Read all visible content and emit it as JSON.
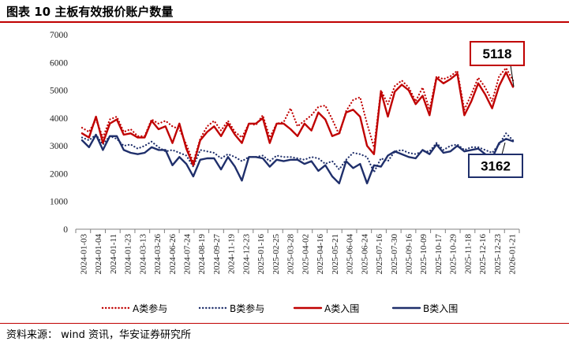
{
  "header": {
    "title": "图表 10 主板有效报价账户数量"
  },
  "footer": {
    "source": "资料来源： wind 资讯，华安证券研究所"
  },
  "colors": {
    "a_series": "#c00000",
    "b_series": "#1f2f6b",
    "accent_rule": "#c00000"
  },
  "chart_data": {
    "type": "line",
    "title": "",
    "xlabel": "",
    "ylabel": "",
    "ylim": [
      0,
      7000
    ],
    "yticks": [
      0,
      1000,
      2000,
      3000,
      4000,
      5000,
      6000,
      7000
    ],
    "grid": false,
    "legend_position": "bottom",
    "x_tick_labels": [
      "2024-01-03",
      "2024-01-04",
      "2024-01-11",
      "2024-01-23",
      "2024-03-13",
      "2024-03-26",
      "2024-06-26",
      "2024-07-24",
      "2024-08-19",
      "2024-09-27",
      "2024-11-19",
      "2024-12-23",
      "2025-01-16",
      "2025-02-25",
      "2025-03-28",
      "2025-04-02",
      "2025-04-16",
      "2025-05-21",
      "2025-06-04",
      "2025-06-24",
      "2025-07-16",
      "2025-07-30",
      "2025-09-16",
      "2025-10-09",
      "2025-10-17",
      "2025-10-29",
      "2025-11-18",
      "2025-12-16",
      "2025-12-23",
      "2026-01-21"
    ],
    "series": [
      {
        "name": "A类参与",
        "style": "dotted",
        "color": "#c00000",
        "values": [
          3650,
          3500,
          3950,
          3300,
          3950,
          4050,
          3500,
          3600,
          3350,
          3350,
          3950,
          3800,
          3900,
          3700,
          3600,
          3050,
          2400,
          3250,
          3700,
          3900,
          3550,
          3900,
          3500,
          3300,
          3800,
          3750,
          4100,
          3300,
          3800,
          3850,
          4350,
          3700,
          3900,
          4100,
          4400,
          4450,
          3950,
          3400,
          4250,
          4650,
          4750,
          3800,
          2950,
          5000,
          4500,
          5150,
          5350,
          5100,
          4600,
          5100,
          4300,
          5500,
          5400,
          5500,
          5700,
          4300,
          4850,
          5450,
          5100,
          4600,
          5500,
          5800,
          5350
        ]
      },
      {
        "name": "B类参与",
        "style": "dotted",
        "color": "#1f2f6b",
        "values": [
          3300,
          3200,
          3400,
          3050,
          3350,
          3250,
          3000,
          3050,
          2900,
          3000,
          3150,
          2950,
          2800,
          2850,
          2750,
          2650,
          2250,
          2850,
          2800,
          2750,
          2550,
          2700,
          2600,
          2450,
          2600,
          2600,
          2650,
          2450,
          2650,
          2600,
          2600,
          2550,
          2500,
          2600,
          2550,
          2350,
          2450,
          2150,
          2500,
          2750,
          2700,
          2600,
          2050,
          2550,
          2450,
          2800,
          2850,
          2750,
          2700,
          2800,
          2800,
          3100,
          2850,
          3000,
          3050,
          2850,
          2950,
          2950,
          2850,
          2750,
          3050,
          3450,
          3200
        ]
      },
      {
        "name": "A类入围",
        "style": "solid",
        "color": "#c00000",
        "values": [
          3450,
          3300,
          4050,
          3100,
          3800,
          3950,
          3400,
          3450,
          3300,
          3300,
          3900,
          3600,
          3700,
          3100,
          3800,
          2900,
          2300,
          3200,
          3500,
          3700,
          3350,
          3800,
          3400,
          3100,
          3800,
          3800,
          4000,
          3100,
          3800,
          3800,
          3600,
          3350,
          3800,
          3550,
          4200,
          3950,
          3350,
          3450,
          4200,
          4300,
          4050,
          3000,
          2700,
          4950,
          4050,
          4950,
          5200,
          5000,
          4500,
          4800,
          4100,
          5450,
          5250,
          5400,
          5600,
          4100,
          4600,
          5250,
          4850,
          4350,
          5150,
          5650,
          5118
        ]
      },
      {
        "name": "B类入围",
        "style": "solid",
        "color": "#1f2f6b",
        "values": [
          3200,
          2950,
          3400,
          2850,
          3350,
          3350,
          2850,
          2750,
          2700,
          2750,
          2950,
          2850,
          2850,
          2300,
          2600,
          2350,
          1900,
          2500,
          2550,
          2550,
          2150,
          2600,
          2250,
          1750,
          2600,
          2600,
          2550,
          2250,
          2500,
          2450,
          2500,
          2500,
          2350,
          2450,
          2100,
          2300,
          1900,
          1650,
          2450,
          2200,
          2350,
          1650,
          2300,
          2250,
          2650,
          2800,
          2700,
          2600,
          2550,
          2850,
          2700,
          3050,
          2750,
          2800,
          3000,
          2800,
          2850,
          2900,
          2700,
          2550,
          3100,
          3250,
          3162
        ]
      }
    ],
    "callouts": [
      {
        "label": "5118",
        "series": "A类入围",
        "color": "#c00000"
      },
      {
        "label": "3162",
        "series": "B类入围",
        "color": "#1f2f6b"
      }
    ]
  }
}
